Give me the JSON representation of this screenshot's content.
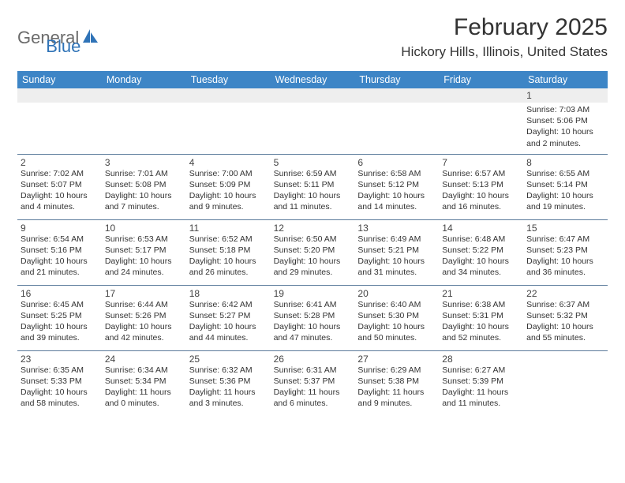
{
  "brand": {
    "word1": "General",
    "word2": "Blue"
  },
  "colors": {
    "header_bg": "#3d85c6",
    "header_text": "#ffffff",
    "row_border": "#5a7a9a",
    "stripe_bg": "#eeeeee",
    "text": "#333333",
    "brand_gray": "#6b6b6b",
    "brand_blue": "#2f73b7",
    "page_bg": "#ffffff"
  },
  "typography": {
    "title_fontsize_pt": 22,
    "location_fontsize_pt": 13,
    "dayhead_fontsize_pt": 9,
    "cell_fontsize_pt": 8
  },
  "title": "February 2025",
  "location": "Hickory Hills, Illinois, United States",
  "day_headers": [
    "Sunday",
    "Monday",
    "Tuesday",
    "Wednesday",
    "Thursday",
    "Friday",
    "Saturday"
  ],
  "layout": {
    "columns": 7,
    "rows": 5,
    "first_day_column_index": 6
  },
  "weeks": [
    [
      null,
      null,
      null,
      null,
      null,
      null,
      {
        "n": "1",
        "sr": "Sunrise: 7:03 AM",
        "ss": "Sunset: 5:06 PM",
        "d1": "Daylight: 10 hours",
        "d2": "and 2 minutes."
      }
    ],
    [
      {
        "n": "2",
        "sr": "Sunrise: 7:02 AM",
        "ss": "Sunset: 5:07 PM",
        "d1": "Daylight: 10 hours",
        "d2": "and 4 minutes."
      },
      {
        "n": "3",
        "sr": "Sunrise: 7:01 AM",
        "ss": "Sunset: 5:08 PM",
        "d1": "Daylight: 10 hours",
        "d2": "and 7 minutes."
      },
      {
        "n": "4",
        "sr": "Sunrise: 7:00 AM",
        "ss": "Sunset: 5:09 PM",
        "d1": "Daylight: 10 hours",
        "d2": "and 9 minutes."
      },
      {
        "n": "5",
        "sr": "Sunrise: 6:59 AM",
        "ss": "Sunset: 5:11 PM",
        "d1": "Daylight: 10 hours",
        "d2": "and 11 minutes."
      },
      {
        "n": "6",
        "sr": "Sunrise: 6:58 AM",
        "ss": "Sunset: 5:12 PM",
        "d1": "Daylight: 10 hours",
        "d2": "and 14 minutes."
      },
      {
        "n": "7",
        "sr": "Sunrise: 6:57 AM",
        "ss": "Sunset: 5:13 PM",
        "d1": "Daylight: 10 hours",
        "d2": "and 16 minutes."
      },
      {
        "n": "8",
        "sr": "Sunrise: 6:55 AM",
        "ss": "Sunset: 5:14 PM",
        "d1": "Daylight: 10 hours",
        "d2": "and 19 minutes."
      }
    ],
    [
      {
        "n": "9",
        "sr": "Sunrise: 6:54 AM",
        "ss": "Sunset: 5:16 PM",
        "d1": "Daylight: 10 hours",
        "d2": "and 21 minutes."
      },
      {
        "n": "10",
        "sr": "Sunrise: 6:53 AM",
        "ss": "Sunset: 5:17 PM",
        "d1": "Daylight: 10 hours",
        "d2": "and 24 minutes."
      },
      {
        "n": "11",
        "sr": "Sunrise: 6:52 AM",
        "ss": "Sunset: 5:18 PM",
        "d1": "Daylight: 10 hours",
        "d2": "and 26 minutes."
      },
      {
        "n": "12",
        "sr": "Sunrise: 6:50 AM",
        "ss": "Sunset: 5:20 PM",
        "d1": "Daylight: 10 hours",
        "d2": "and 29 minutes."
      },
      {
        "n": "13",
        "sr": "Sunrise: 6:49 AM",
        "ss": "Sunset: 5:21 PM",
        "d1": "Daylight: 10 hours",
        "d2": "and 31 minutes."
      },
      {
        "n": "14",
        "sr": "Sunrise: 6:48 AM",
        "ss": "Sunset: 5:22 PM",
        "d1": "Daylight: 10 hours",
        "d2": "and 34 minutes."
      },
      {
        "n": "15",
        "sr": "Sunrise: 6:47 AM",
        "ss": "Sunset: 5:23 PM",
        "d1": "Daylight: 10 hours",
        "d2": "and 36 minutes."
      }
    ],
    [
      {
        "n": "16",
        "sr": "Sunrise: 6:45 AM",
        "ss": "Sunset: 5:25 PM",
        "d1": "Daylight: 10 hours",
        "d2": "and 39 minutes."
      },
      {
        "n": "17",
        "sr": "Sunrise: 6:44 AM",
        "ss": "Sunset: 5:26 PM",
        "d1": "Daylight: 10 hours",
        "d2": "and 42 minutes."
      },
      {
        "n": "18",
        "sr": "Sunrise: 6:42 AM",
        "ss": "Sunset: 5:27 PM",
        "d1": "Daylight: 10 hours",
        "d2": "and 44 minutes."
      },
      {
        "n": "19",
        "sr": "Sunrise: 6:41 AM",
        "ss": "Sunset: 5:28 PM",
        "d1": "Daylight: 10 hours",
        "d2": "and 47 minutes."
      },
      {
        "n": "20",
        "sr": "Sunrise: 6:40 AM",
        "ss": "Sunset: 5:30 PM",
        "d1": "Daylight: 10 hours",
        "d2": "and 50 minutes."
      },
      {
        "n": "21",
        "sr": "Sunrise: 6:38 AM",
        "ss": "Sunset: 5:31 PM",
        "d1": "Daylight: 10 hours",
        "d2": "and 52 minutes."
      },
      {
        "n": "22",
        "sr": "Sunrise: 6:37 AM",
        "ss": "Sunset: 5:32 PM",
        "d1": "Daylight: 10 hours",
        "d2": "and 55 minutes."
      }
    ],
    [
      {
        "n": "23",
        "sr": "Sunrise: 6:35 AM",
        "ss": "Sunset: 5:33 PM",
        "d1": "Daylight: 10 hours",
        "d2": "and 58 minutes."
      },
      {
        "n": "24",
        "sr": "Sunrise: 6:34 AM",
        "ss": "Sunset: 5:34 PM",
        "d1": "Daylight: 11 hours",
        "d2": "and 0 minutes."
      },
      {
        "n": "25",
        "sr": "Sunrise: 6:32 AM",
        "ss": "Sunset: 5:36 PM",
        "d1": "Daylight: 11 hours",
        "d2": "and 3 minutes."
      },
      {
        "n": "26",
        "sr": "Sunrise: 6:31 AM",
        "ss": "Sunset: 5:37 PM",
        "d1": "Daylight: 11 hours",
        "d2": "and 6 minutes."
      },
      {
        "n": "27",
        "sr": "Sunrise: 6:29 AM",
        "ss": "Sunset: 5:38 PM",
        "d1": "Daylight: 11 hours",
        "d2": "and 9 minutes."
      },
      {
        "n": "28",
        "sr": "Sunrise: 6:27 AM",
        "ss": "Sunset: 5:39 PM",
        "d1": "Daylight: 11 hours",
        "d2": "and 11 minutes."
      },
      null
    ]
  ]
}
